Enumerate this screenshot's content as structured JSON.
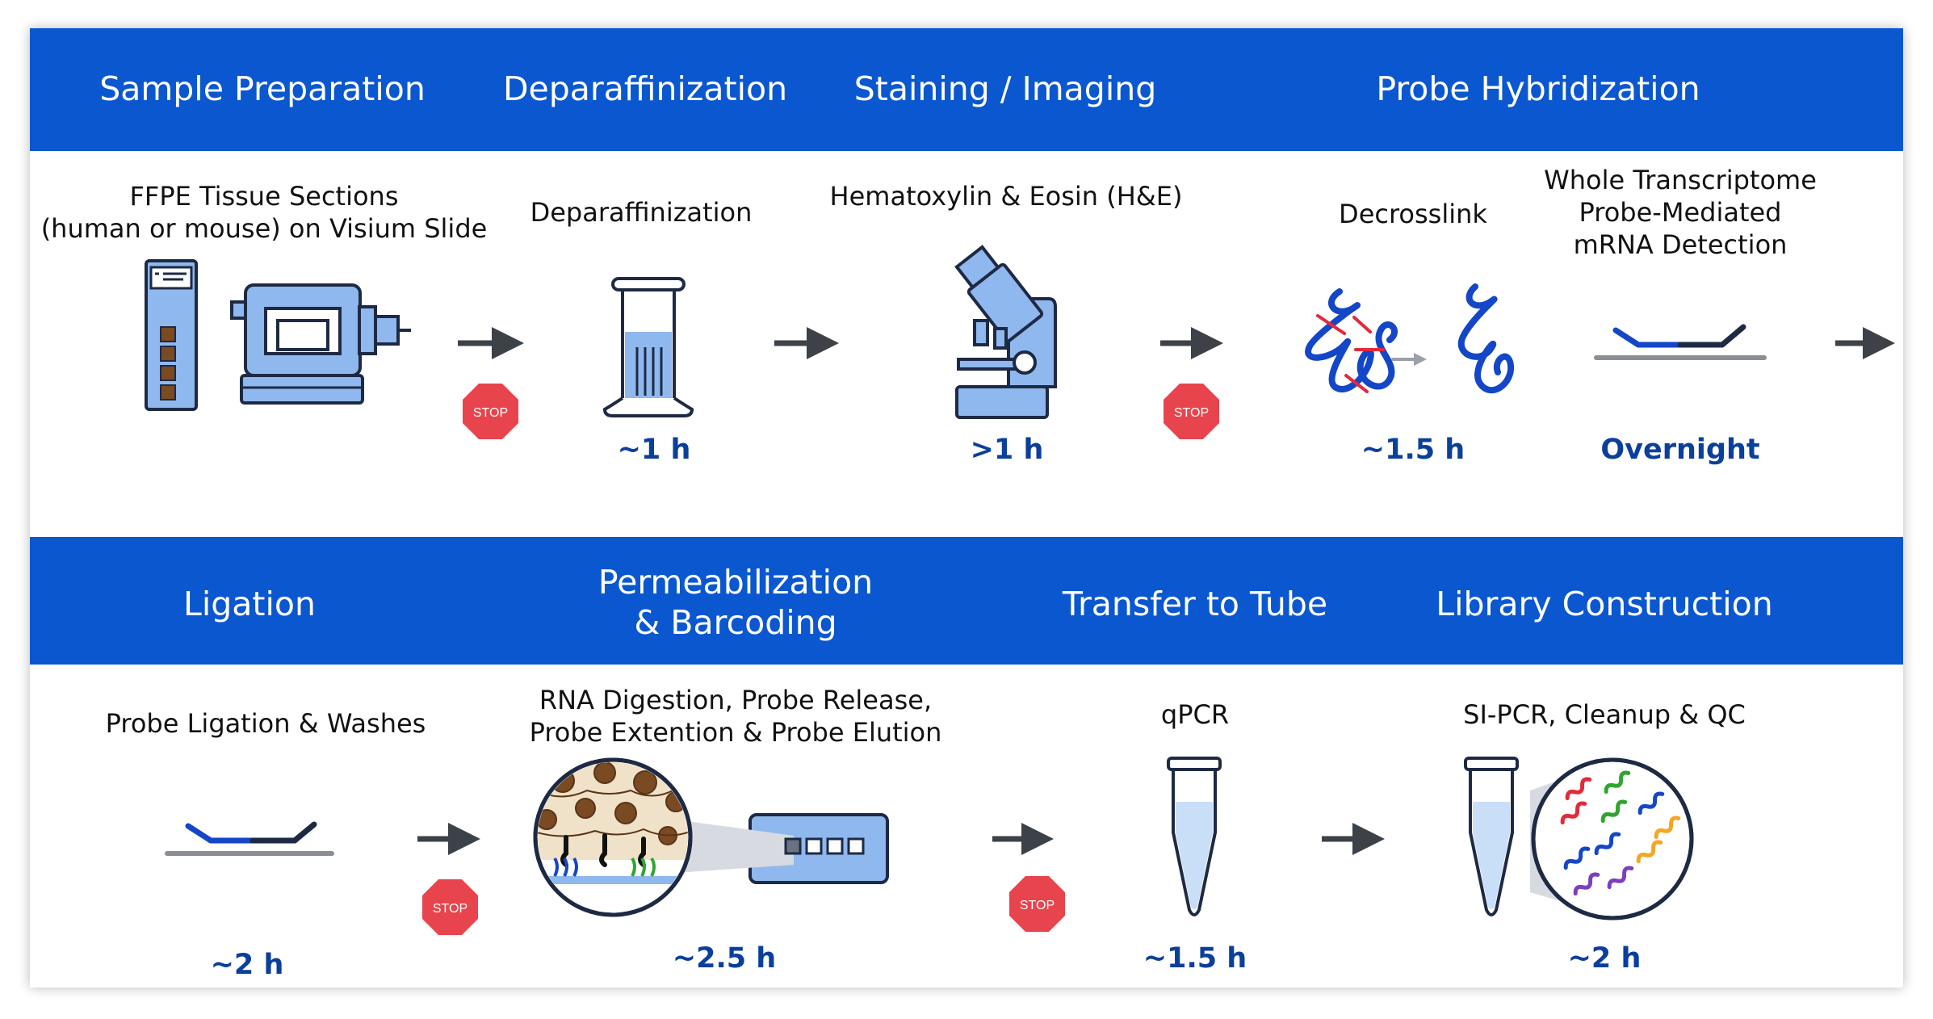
{
  "row1": {
    "headers": [
      "Sample Preparation",
      "Deparaffinization",
      "Staining / Imaging",
      "Probe Hybridization"
    ],
    "steps": [
      {
        "title": "FFPE Tissue Sections",
        "subtitle": "(human or mouse) on Visium Slide"
      },
      {
        "title": "Deparaffinization",
        "time": "~1 h"
      },
      {
        "title": "Hematoxylin & Eosin (H&E)",
        "time": ">1 h"
      },
      {
        "title": "Decrosslink",
        "time": "~1.5 h"
      },
      {
        "title": "Whole Transcriptome",
        "title2": "Probe-Mediated",
        "title3": "mRNA Detection",
        "time": "Overnight"
      }
    ]
  },
  "row2": {
    "headers": [
      "Ligation",
      "Permeabilization",
      "& Barcoding",
      "Transfer to Tube",
      "Library Construction"
    ],
    "steps": [
      {
        "title": "Probe Ligation & Washes",
        "time": "~2 h"
      },
      {
        "title": "RNA Digestion, Probe Release,",
        "title2": "Probe Extention & Probe Elution",
        "time": "~2.5 h"
      },
      {
        "title": "qPCR",
        "time": "~1.5 h"
      },
      {
        "title": "SI-PCR, Cleanup & QC",
        "time": "~2 h"
      }
    ]
  },
  "stop_label": "STOP",
  "icons": [
    "slide-icon",
    "microtome-icon",
    "xylene-jar-icon",
    "microscope-icon",
    "decrosslink-dna-icon",
    "probe-icon",
    "tissue-barcode-icon",
    "pcr-tube-icon",
    "library-tube-icon",
    "stop-sign-icon",
    "arrow-icon"
  ],
  "colors": {
    "band": "#0a57d0",
    "time_text": "#0b3f9c",
    "stop": "#e8444d",
    "icon_fill": "#8fb8ee",
    "icon_stroke": "#1e2a44"
  }
}
